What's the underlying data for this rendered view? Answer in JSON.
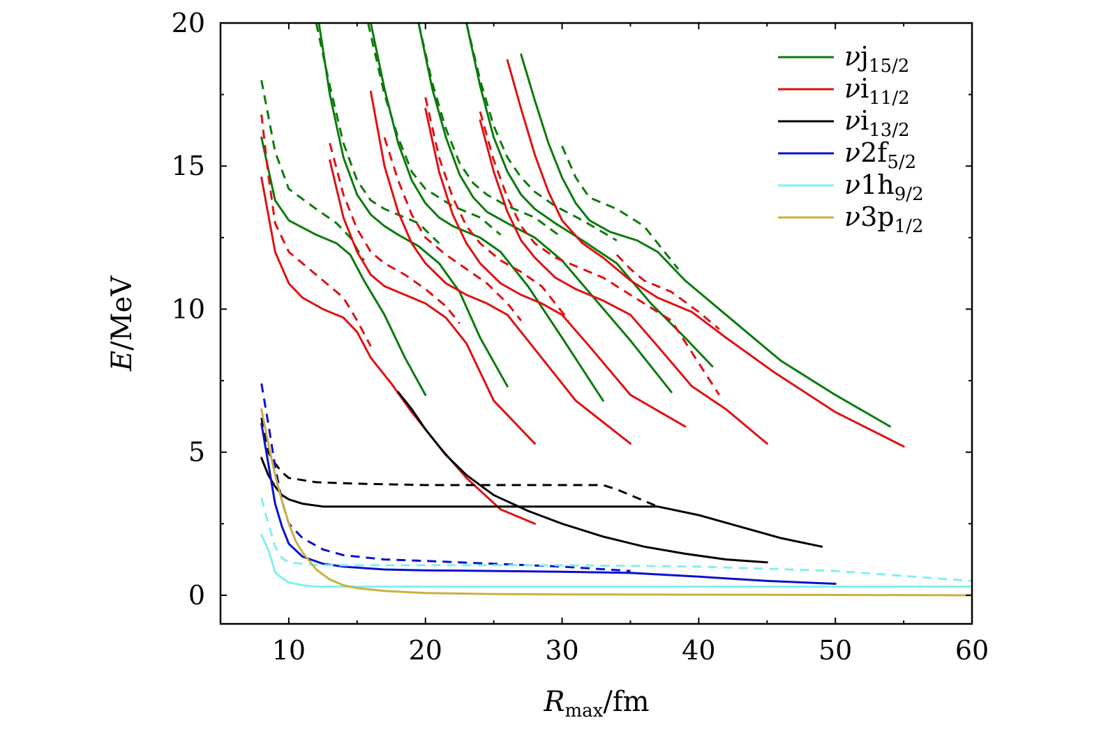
{
  "chart_data": {
    "type": "line",
    "title": "",
    "xlabel": {
      "symbol": "R",
      "subscript": "max",
      "unit": "/fm"
    },
    "ylabel": {
      "symbol": "E",
      "unit": "/MeV"
    },
    "xlim": [
      5,
      60
    ],
    "ylim": [
      -1,
      20
    ],
    "xticks": [
      10,
      20,
      30,
      40,
      50,
      60
    ],
    "yticks": [
      0,
      5,
      10,
      15,
      20
    ],
    "xtick_labels": [
      "10",
      "20",
      "30",
      "40",
      "50",
      "60"
    ],
    "ytick_labels": [
      "0",
      "5",
      "10",
      "15",
      "20"
    ],
    "grid": false,
    "legend_position": "top-right",
    "legend": [
      {
        "key": "j15",
        "prefix": "ν",
        "orbital": "j",
        "sub": "15/2",
        "color": "#0a7a0a"
      },
      {
        "key": "i11",
        "prefix": "ν",
        "orbital": "i",
        "sub": "11/2",
        "color": "#e01010"
      },
      {
        "key": "i13",
        "prefix": "ν",
        "orbital": "i",
        "sub": "13/2",
        "color": "#000000"
      },
      {
        "key": "f52",
        "prefix": "ν",
        "orbital": "2f",
        "sub": "5/2",
        "color": "#0a10d0"
      },
      {
        "key": "h92",
        "prefix": "ν",
        "orbital": "1h",
        "sub": "9/2",
        "color": "#80f0f0"
      },
      {
        "key": "p12",
        "prefix": "ν",
        "orbital": "3p",
        "sub": "1/2",
        "color": "#c8b040"
      }
    ],
    "series": [
      {
        "name": "νj15/2 solid 1",
        "color": "#0a7a0a",
        "style": "solid",
        "x": [
          8.0,
          9.0,
          10.0,
          12.0,
          13.5,
          14.5,
          15.5,
          17.0,
          18.5,
          20.0
        ],
        "y": [
          16.0,
          13.8,
          13.1,
          12.6,
          12.3,
          11.9,
          11.0,
          9.8,
          8.3,
          7.0
        ]
      },
      {
        "name": "νj15/2 dashed 1",
        "color": "#0a7a0a",
        "style": "dashed",
        "x": [
          8.0,
          9.0,
          10.0,
          12.0,
          13.5,
          14.5,
          15.5
        ],
        "y": [
          18.0,
          15.5,
          14.2,
          13.5,
          13.0,
          12.5,
          11.7
        ]
      },
      {
        "name": "νj15/2 solid 2",
        "color": "#0a7a0a",
        "style": "solid",
        "x": [
          12.2,
          13.0,
          14.0,
          15.0,
          16.0,
          17.0,
          18.0,
          19.5,
          21.0,
          22.5,
          24.0,
          26.0
        ],
        "y": [
          20.0,
          17.5,
          15.3,
          14.0,
          13.3,
          12.9,
          12.6,
          12.2,
          11.6,
          10.6,
          9.0,
          7.3
        ]
      },
      {
        "name": "νj15/2 dashed 2",
        "color": "#0a7a0a",
        "style": "dashed",
        "x": [
          12.0,
          13.0,
          14.0,
          15.0,
          16.0,
          17.0,
          18.0,
          19.5,
          21.0
        ],
        "y": [
          20.0,
          17.8,
          15.8,
          14.5,
          13.8,
          13.5,
          13.3,
          13.0,
          12.3
        ]
      },
      {
        "name": "νj15/2 solid 3",
        "color": "#0a7a0a",
        "style": "solid",
        "x": [
          16.0,
          17.0,
          18.0,
          19.0,
          20.0,
          21.0,
          22.0,
          24.0,
          25.5,
          27.5,
          30.0,
          33.0
        ],
        "y": [
          20.0,
          17.7,
          15.8,
          14.5,
          13.7,
          13.2,
          12.9,
          12.5,
          12.0,
          10.8,
          9.0,
          6.8
        ]
      },
      {
        "name": "νj15/2 dashed 3",
        "color": "#0a7a0a",
        "style": "dashed",
        "x": [
          15.8,
          17.0,
          18.0,
          19.0,
          20.0,
          21.0,
          22.0,
          24.0,
          25.5
        ],
        "y": [
          20.0,
          17.5,
          16.0,
          14.8,
          14.2,
          13.9,
          13.6,
          13.2,
          12.6
        ]
      },
      {
        "name": "νj15/2 solid 4",
        "color": "#0a7a0a",
        "style": "solid",
        "x": [
          19.5,
          20.5,
          21.5,
          22.5,
          23.5,
          24.5,
          26.0,
          28.0,
          30.0,
          32.5,
          35.0,
          38.0
        ],
        "y": [
          20.0,
          17.7,
          16.0,
          14.7,
          13.9,
          13.4,
          13.0,
          12.5,
          11.7,
          10.3,
          8.9,
          7.1
        ]
      },
      {
        "name": "νj15/2 dashed 4",
        "color": "#0a7a0a",
        "style": "dashed",
        "x": [
          19.5,
          20.5,
          21.5,
          22.5,
          23.5,
          24.5,
          26.0,
          28.0,
          30.0
        ],
        "y": [
          20.0,
          17.9,
          16.3,
          15.1,
          14.4,
          14.0,
          13.6,
          13.2,
          12.5
        ]
      },
      {
        "name": "νj15/2 solid 5",
        "color": "#0a7a0a",
        "style": "solid",
        "x": [
          23.0,
          24.0,
          25.0,
          26.0,
          27.0,
          28.0,
          29.5,
          31.5,
          34.0,
          36.5,
          39.0,
          41.0
        ],
        "y": [
          20.0,
          17.8,
          16.0,
          14.8,
          14.0,
          13.5,
          13.0,
          12.4,
          11.6,
          10.2,
          9.0,
          8.0
        ]
      },
      {
        "name": "νj15/2 dashed 5",
        "color": "#0a7a0a",
        "style": "dashed",
        "x": [
          23.0,
          24.0,
          25.0,
          26.0,
          27.0,
          28.0,
          29.5,
          31.5,
          34.0
        ],
        "y": [
          20.0,
          18.0,
          16.4,
          15.3,
          14.6,
          14.1,
          13.6,
          13.1,
          12.4
        ]
      },
      {
        "name": "νj15/2 solid 6",
        "color": "#0a7a0a",
        "style": "solid",
        "x": [
          27.0,
          28.0,
          29.0,
          30.0,
          31.0,
          32.0,
          33.5,
          35.5,
          37.0,
          39.0,
          42.0,
          46.0,
          50.0,
          54.0
        ],
        "y": [
          18.9,
          17.3,
          15.8,
          14.6,
          13.7,
          13.1,
          12.7,
          12.4,
          12.0,
          11.0,
          9.8,
          8.2,
          7.0,
          5.9
        ]
      },
      {
        "name": "νj15/2 dashed 6",
        "color": "#0a7a0a",
        "style": "dashed",
        "x": [
          30.0,
          31.0,
          32.0,
          34.0,
          36.0,
          37.0,
          38.5
        ],
        "y": [
          15.7,
          14.6,
          13.9,
          13.5,
          12.9,
          12.3,
          11.4
        ]
      },
      {
        "name": "νi11/2 solid 1",
        "color": "#e01010",
        "style": "solid",
        "x": [
          8.0,
          9.0,
          10.0,
          11.0,
          12.5,
          14.0,
          15.0,
          16.0,
          17.5,
          19.0,
          21.0,
          23.0,
          25.5,
          28.0
        ],
        "y": [
          14.6,
          12.0,
          10.9,
          10.4,
          10.0,
          9.7,
          9.2,
          8.3,
          7.4,
          6.4,
          5.2,
          4.1,
          3.0,
          2.5
        ]
      },
      {
        "name": "νi11/2 dashed 1",
        "color": "#e01010",
        "style": "dashed",
        "x": [
          8.0,
          8.5,
          9.0,
          10.0,
          11.0,
          12.5,
          14.0,
          15.0,
          16.0
        ],
        "y": [
          16.8,
          14.7,
          13.0,
          12.0,
          11.6,
          11.0,
          10.4,
          9.6,
          8.7
        ]
      },
      {
        "name": "νi11/2 solid 2",
        "color": "#e01010",
        "style": "solid",
        "x": [
          13.0,
          14.0,
          15.0,
          16.0,
          17.0,
          18.5,
          20.0,
          21.5,
          23.0,
          25.0,
          28.0
        ],
        "y": [
          15.2,
          13.2,
          12.0,
          11.2,
          10.8,
          10.5,
          10.2,
          9.7,
          8.8,
          6.8,
          5.3
        ]
      },
      {
        "name": "νi11/2 dashed 2",
        "color": "#e01010",
        "style": "dashed",
        "x": [
          13.0,
          14.0,
          15.0,
          16.0,
          17.0,
          18.5,
          20.0,
          21.5,
          22.5
        ],
        "y": [
          15.8,
          14.0,
          12.8,
          12.0,
          11.6,
          11.2,
          10.7,
          10.1,
          9.5
        ]
      },
      {
        "name": "νi11/2 solid 3",
        "color": "#e01010",
        "style": "solid",
        "x": [
          16.0,
          17.0,
          18.0,
          19.0,
          20.0,
          21.5,
          23.0,
          24.5,
          26.0,
          28.0,
          31.0,
          35.0
        ],
        "y": [
          17.6,
          15.0,
          13.4,
          12.3,
          11.6,
          10.9,
          10.5,
          10.2,
          9.8,
          8.6,
          6.8,
          5.3
        ]
      },
      {
        "name": "νi11/2 dashed 3",
        "color": "#e01010",
        "style": "dashed",
        "x": [
          17.0,
          18.0,
          19.0,
          20.0,
          21.5,
          23.0,
          24.5,
          26.0,
          27.0
        ],
        "y": [
          16.0,
          14.5,
          13.3,
          12.5,
          11.9,
          11.4,
          10.9,
          10.2,
          9.6
        ]
      },
      {
        "name": "νi11/2 solid 4",
        "color": "#e01010",
        "style": "solid",
        "x": [
          20.0,
          21.0,
          22.0,
          23.0,
          24.0,
          25.5,
          27.0,
          28.5,
          30.0,
          32.0,
          35.0,
          39.0
        ],
        "y": [
          17.0,
          14.8,
          13.3,
          12.3,
          11.6,
          10.9,
          10.5,
          10.2,
          9.8,
          8.7,
          7.0,
          5.9
        ]
      },
      {
        "name": "νi11/2 dashed 4",
        "color": "#e01010",
        "style": "dashed",
        "x": [
          20.0,
          21.0,
          22.0,
          23.0,
          24.0,
          25.5,
          27.0,
          28.5,
          30.5
        ],
        "y": [
          17.4,
          15.3,
          13.9,
          12.9,
          12.3,
          11.7,
          11.3,
          10.8,
          9.6
        ]
      },
      {
        "name": "νi11/2 solid 5",
        "color": "#e01010",
        "style": "solid",
        "x": [
          24.0,
          25.0,
          26.0,
          27.0,
          28.0,
          29.5,
          31.0,
          33.0,
          35.0,
          37.0,
          39.5,
          42.0,
          45.0
        ],
        "y": [
          16.6,
          14.8,
          13.4,
          12.4,
          11.8,
          11.1,
          10.7,
          10.3,
          9.8,
          8.7,
          7.3,
          6.5,
          5.3
        ]
      },
      {
        "name": "νi11/2 dashed 5",
        "color": "#e01010",
        "style": "dashed",
        "x": [
          24.0,
          25.0,
          26.0,
          27.0,
          28.0,
          29.5,
          31.0,
          33.0,
          35.0,
          38.0,
          41.5
        ],
        "y": [
          16.9,
          15.2,
          13.9,
          12.9,
          12.3,
          11.8,
          11.5,
          11.1,
          10.5,
          9.6,
          7.0
        ]
      },
      {
        "name": "νi11/2 solid 6",
        "color": "#e01010",
        "style": "solid",
        "x": [
          26.0,
          27.0,
          28.0,
          29.0,
          30.0,
          31.5,
          33.0,
          35.0,
          37.0,
          39.5,
          42.0,
          45.5,
          50.0,
          55.0
        ],
        "y": [
          18.7,
          17.0,
          15.4,
          14.1,
          13.1,
          12.3,
          11.8,
          11.0,
          10.4,
          9.9,
          9.0,
          7.8,
          6.4,
          5.2
        ]
      },
      {
        "name": "νi11/2 dashed 6",
        "color": "#e01010",
        "style": "dashed",
        "x": [
          34.0,
          35.0,
          36.0,
          38.0,
          40.0,
          41.5
        ],
        "y": [
          11.9,
          11.4,
          11.0,
          10.6,
          9.9,
          9.3
        ]
      },
      {
        "name": "νi13/2 solid flat",
        "color": "#000000",
        "style": "solid",
        "x": [
          8.0,
          8.5,
          9.0,
          9.5,
          10.0,
          11.0,
          12.5,
          15.0,
          20.0,
          25.0,
          30.0,
          35.0,
          37.0,
          40.0,
          43.0,
          46.0,
          49.0
        ],
        "y": [
          4.8,
          4.2,
          3.8,
          3.5,
          3.35,
          3.2,
          3.1,
          3.1,
          3.1,
          3.1,
          3.1,
          3.1,
          3.1,
          2.8,
          2.4,
          2.0,
          1.7
        ]
      },
      {
        "name": "νi13/2 dashed flat",
        "color": "#000000",
        "style": "dashed",
        "x": [
          8.0,
          8.5,
          9.0,
          9.5,
          10.0,
          12.0,
          15.0,
          20.0,
          25.0,
          30.0,
          33.0,
          34.0,
          35.5,
          37.0
        ],
        "y": [
          6.2,
          5.0,
          4.6,
          4.3,
          4.1,
          3.95,
          3.9,
          3.85,
          3.85,
          3.85,
          3.85,
          3.7,
          3.4,
          3.1
        ]
      },
      {
        "name": "νi13/2 solid cross",
        "color": "#000000",
        "style": "solid",
        "x": [
          18.0,
          19.0,
          20.0,
          21.5,
          23.0,
          25.0,
          27.5,
          30.0,
          33.0,
          36.0,
          39.0,
          42.0,
          45.0
        ],
        "y": [
          7.1,
          6.5,
          5.8,
          4.9,
          4.2,
          3.5,
          2.95,
          2.5,
          2.05,
          1.7,
          1.45,
          1.25,
          1.15
        ]
      },
      {
        "name": "ν2f5/2 solid",
        "color": "#0a10d0",
        "style": "solid",
        "x": [
          8.0,
          8.5,
          9.0,
          9.5,
          10.0,
          11.0,
          12.5,
          14.0,
          17.0,
          20.0,
          25.0,
          30.0,
          35.0,
          40.0,
          45.0,
          50.0
        ],
        "y": [
          6.0,
          4.6,
          3.2,
          2.4,
          1.8,
          1.35,
          1.1,
          1.0,
          0.9,
          0.87,
          0.85,
          0.82,
          0.78,
          0.65,
          0.5,
          0.4
        ]
      },
      {
        "name": "ν2f5/2 dashed",
        "color": "#0a10d0",
        "style": "dashed",
        "x": [
          8.0,
          8.5,
          9.0,
          9.5,
          10.0,
          11.0,
          12.5,
          14.0,
          17.0,
          20.0,
          25.0,
          30.0,
          35.0
        ],
        "y": [
          7.4,
          6.0,
          4.5,
          3.3,
          2.5,
          2.0,
          1.6,
          1.4,
          1.25,
          1.2,
          1.1,
          1.0,
          0.85
        ]
      },
      {
        "name": "ν1h9/2 solid",
        "color": "#80f0f0",
        "style": "solid",
        "x": [
          8.0,
          8.5,
          9.0,
          9.5,
          10.0,
          11.0,
          12.0,
          15.0,
          20.0,
          30.0,
          40.0,
          50.0,
          60.0
        ],
        "y": [
          2.1,
          1.6,
          0.8,
          0.6,
          0.45,
          0.35,
          0.3,
          0.3,
          0.3,
          0.3,
          0.3,
          0.3,
          0.3
        ]
      },
      {
        "name": "ν1h9/2 dashed",
        "color": "#80f0f0",
        "style": "dashed",
        "x": [
          8.0,
          8.5,
          9.0,
          9.5,
          10.0,
          11.0,
          12.0,
          15.0,
          20.0,
          30.0,
          40.0,
          50.0,
          60.0
        ],
        "y": [
          3.4,
          2.5,
          1.7,
          1.3,
          1.15,
          1.1,
          1.05,
          1.05,
          1.05,
          1.05,
          1.0,
          0.85,
          0.5
        ]
      },
      {
        "name": "ν3p1/2 solid",
        "color": "#c8b040",
        "style": "solid",
        "x": [
          8.0,
          8.5,
          9.0,
          9.5,
          10.0,
          10.5,
          11.0,
          12.0,
          13.0,
          14.0,
          15.0,
          17.0,
          20.0,
          25.0,
          30.0,
          40.0,
          50.0,
          60.0
        ],
        "y": [
          6.5,
          5.3,
          4.2,
          3.3,
          2.5,
          1.9,
          1.5,
          0.9,
          0.55,
          0.35,
          0.25,
          0.15,
          0.08,
          0.04,
          0.03,
          0.02,
          0.01,
          0.0
        ]
      }
    ]
  }
}
